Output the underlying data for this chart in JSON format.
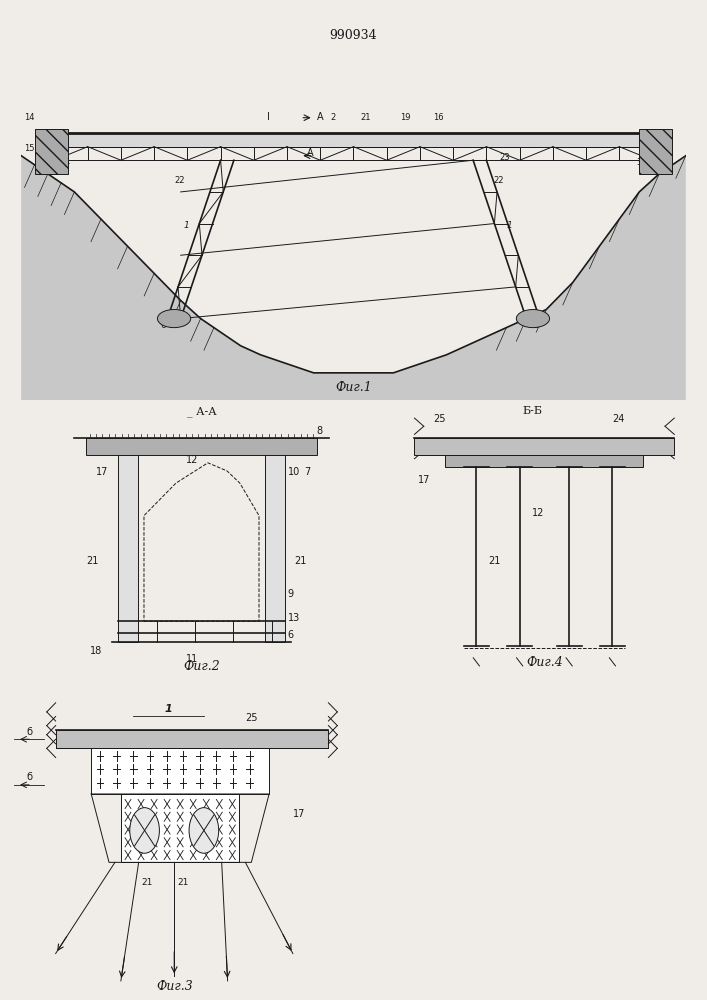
{
  "title": "990934",
  "fig1_label": "Фиг.1",
  "fig2_label": "Фиг.2",
  "fig3_label": "Фиг.3",
  "fig4_label": "Фиг.4",
  "section_aa": "А-А",
  "section_bb": "Б-Б",
  "bg_color": "#f0ede8",
  "line_color": "#1a1a1a",
  "white": "#ffffff"
}
